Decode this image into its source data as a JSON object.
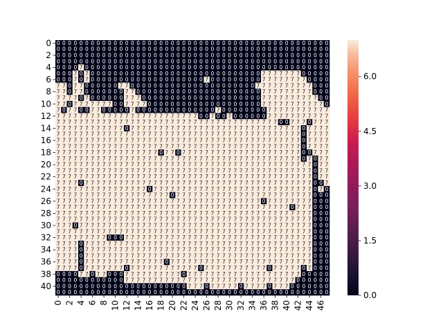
{
  "chart_data": {
    "type": "heatmap",
    "title": "",
    "xlabel": "",
    "ylabel": "",
    "n_rows": 42,
    "n_cols": 48,
    "x_ticks": [
      "0",
      "2",
      "4",
      "6",
      "8",
      "10",
      "12",
      "14",
      "16",
      "18",
      "20",
      "22",
      "24",
      "26",
      "28",
      "30",
      "32",
      "34",
      "36",
      "38",
      "40",
      "42",
      "44",
      "46"
    ],
    "y_ticks": [
      "0",
      "2",
      "4",
      "6",
      "8",
      "10",
      "12",
      "14",
      "16",
      "18",
      "20",
      "22",
      "24",
      "26",
      "28",
      "30",
      "32",
      "34",
      "36",
      "38",
      "40"
    ],
    "colorbar": {
      "vmin": 0.0,
      "vmax": 7.0,
      "ticks": [
        "0.0",
        "1.5",
        "3.0",
        "4.5",
        "6.0"
      ],
      "tick_values": [
        0.0,
        1.5,
        3.0,
        4.5,
        6.0
      ],
      "colormap": "rocket"
    },
    "annotation_format": "integer",
    "grid_rows": [
      "000000000000000000000000000000000000000000000000",
      "000000000000000000000000000000000000000000000000",
      "000000000000000000000000000000000000000000000000",
      "000000000000000000000000000000000000000000000000",
      "000070000000000000000000000000000000000000000000",
      "000707000000000000000000000000000000777777700000",
      "000707000000000000000000007000000000777777770000",
      "770770000007700000000000000000000007777777777000",
      "770770000000770000000000000000000000777777777000",
      "777707000000777000000000000000000000777777777700",
      "770777777700777700000000000000000000777777777770",
      "707700770000070000000000000070000000077777777777",
      "777777777777777777777777700700700000077777777777",
      "777777777777777777777777777777777777777007770777",
      "777777777777077777777777777777777777777777707777",
      "777777777777777777777777777777777777777777707777",
      "777777777777777777777777777777777777777777707777",
      "777777777777777777777777777777777777777777707777",
      "777777777777777777077077777777777777777777700777",
      "777777777777777777777777777777777777777777707077",
      "777777777777777777777777777777777777777777777077",
      "777777777777777777777777777777777777777777777077",
      "777777777777777777777777777777777777777777777077",
      "777707777777777777777777777777777777777777777007",
      "777777777777777707777777777777777777777777777070",
      "777777777777777777770777777777777777777777777000",
      "777777777777777777777777777777777777077777777000",
      "777777777777777777777777777777777777777770777000",
      "777777777777777777777777777777777777777777777000",
      "777777777777777777777777777777777777777777777000",
      "777077777777777777777777777777777777777777777000",
      "777777777777777777777777777777777777777777777000",
      "777777777000777777777777777777777777777777777000",
      "777707777777777777777777777777777777777777777000",
      "777707777777777777777777777777777777777777777000",
      "777707777777777777777777777777777777777777777000",
      "777707777777777777707777777777777777777777777000",
      "777707777777077777777777707777777777707777707000",
      "000077077000777777777707777777777777777777700000",
      "000000000000777777777777777777777777777777000000",
      "000000000000000000000007770777770777707770000000",
      "000000000000000000000000000000000000000000000000"
    ]
  }
}
